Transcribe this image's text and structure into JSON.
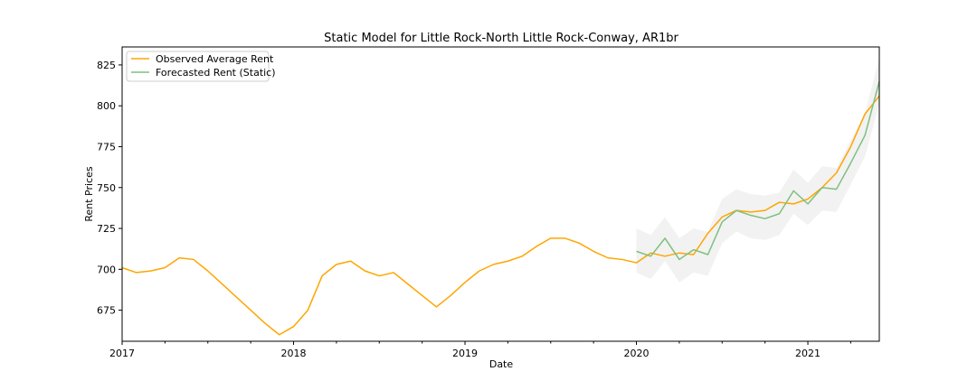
{
  "chart_data": {
    "type": "line",
    "title": "Static Model for Little Rock-North Little Rock-Conway, AR1br",
    "xlabel": "Date",
    "ylabel": "Rent Prices",
    "xlim": [
      "2017-01",
      "2021-06"
    ],
    "ylim": [
      656,
      836
    ],
    "x_ticks": [
      "2017",
      "2018",
      "2019",
      "2020",
      "2021"
    ],
    "y_ticks": [
      675,
      700,
      725,
      750,
      775,
      800,
      825
    ],
    "grid": false,
    "legend_position": "top-left",
    "series": [
      {
        "name": "Observed Average Rent",
        "color": "#ffa500",
        "x": [
          "2017-01",
          "2017-02",
          "2017-03",
          "2017-04",
          "2017-05",
          "2017-06",
          "2017-07",
          "2017-08",
          "2017-09",
          "2017-10",
          "2017-11",
          "2017-12",
          "2018-01",
          "2018-02",
          "2018-03",
          "2018-04",
          "2018-05",
          "2018-06",
          "2018-07",
          "2018-08",
          "2018-09",
          "2018-10",
          "2018-11",
          "2018-12",
          "2019-01",
          "2019-02",
          "2019-03",
          "2019-04",
          "2019-05",
          "2019-06",
          "2019-07",
          "2019-08",
          "2019-09",
          "2019-10",
          "2019-11",
          "2019-12",
          "2020-01",
          "2020-02",
          "2020-03",
          "2020-04",
          "2020-05",
          "2020-06",
          "2020-07",
          "2020-08",
          "2020-09",
          "2020-10",
          "2020-11",
          "2020-12",
          "2021-01",
          "2021-02",
          "2021-03",
          "2021-04",
          "2021-05",
          "2021-06"
        ],
        "values": [
          701,
          698,
          699,
          701,
          707,
          706,
          699,
          691,
          683,
          675,
          667,
          660,
          665,
          675,
          696,
          703,
          705,
          699,
          696,
          698,
          691,
          684,
          677,
          684,
          692,
          699,
          703,
          705,
          708,
          714,
          719,
          719,
          716,
          711,
          707,
          706,
          704,
          710,
          708,
          710,
          709,
          722,
          732,
          736,
          735,
          736,
          741,
          740,
          743,
          750,
          759,
          775,
          795,
          806
        ]
      },
      {
        "name": "Forecasted Rent (Static)",
        "color": "#7fbf7f",
        "x": [
          "2020-01",
          "2020-02",
          "2020-03",
          "2020-04",
          "2020-05",
          "2020-06",
          "2020-07",
          "2020-08",
          "2020-09",
          "2020-10",
          "2020-11",
          "2020-12",
          "2021-01",
          "2021-02",
          "2021-03",
          "2021-04",
          "2021-05",
          "2021-06"
        ],
        "values": [
          711,
          708,
          719,
          706,
          712,
          709,
          729,
          736,
          733,
          731,
          734,
          748,
          740,
          750,
          749,
          765,
          782,
          815
        ],
        "lower": [
          698,
          694,
          705,
          692,
          698,
          696,
          716,
          723,
          719,
          718,
          721,
          734,
          727,
          736,
          735,
          752,
          769,
          801
        ],
        "upper": [
          725,
          721,
          732,
          719,
          725,
          723,
          743,
          749,
          746,
          745,
          747,
          761,
          753,
          763,
          762,
          779,
          796,
          829
        ]
      }
    ]
  }
}
